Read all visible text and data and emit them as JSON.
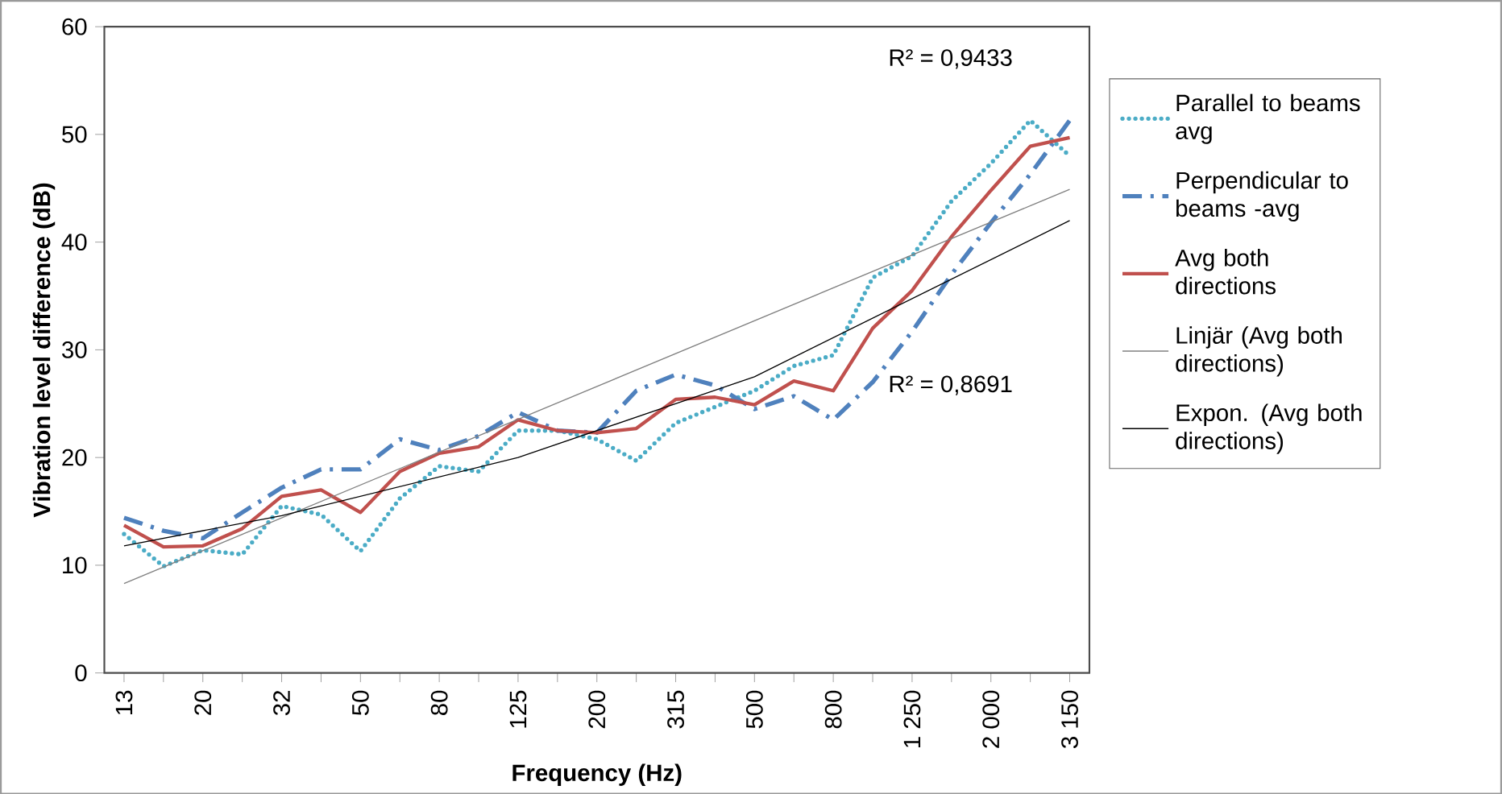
{
  "chart_data": {
    "type": "line",
    "xlabel": "Frequency (Hz)",
    "ylabel": "Vibration level difference (dB)",
    "categories": [
      "13",
      null,
      "20",
      null,
      "32",
      null,
      "50",
      null,
      "80",
      null,
      "125",
      null,
      "200",
      null,
      "315",
      null,
      "500",
      null,
      "800",
      null,
      "1 250",
      null,
      "2 000",
      null,
      "3 150"
    ],
    "ylim": [
      0,
      60
    ],
    "yticks": [
      0,
      10,
      20,
      30,
      40,
      50,
      60
    ],
    "legend": "right",
    "grid": false,
    "series": [
      {
        "name": "Parallel to beams avg",
        "color": "#4bacc6",
        "line_style": "dotted",
        "values": [
          12.9,
          9.9,
          11.4,
          11.0,
          15.5,
          14.7,
          11.3,
          16.2,
          19.2,
          18.7,
          22.5,
          22.5,
          21.7,
          19.7,
          23.2,
          24.7,
          26.2,
          28.5,
          29.5,
          36.7,
          38.7,
          43.8,
          47.3,
          51.3,
          48.0
        ]
      },
      {
        "name": "Perpendicular to beams -avg",
        "color": "#4f81bd",
        "line_style": "dashed",
        "values": [
          14.4,
          13.2,
          12.5,
          14.9,
          17.2,
          18.9,
          18.9,
          21.7,
          20.7,
          22.0,
          24.2,
          22.5,
          22.3,
          26.2,
          27.7,
          26.7,
          24.5,
          25.7,
          23.5,
          27.0,
          31.7,
          37.0,
          41.8,
          46.3,
          51.3
        ]
      },
      {
        "name": "Avg both directions",
        "color": "#c0504d",
        "line_style": "solid",
        "values": [
          13.7,
          11.7,
          11.8,
          13.4,
          16.4,
          17.0,
          14.9,
          18.7,
          20.4,
          21.0,
          23.5,
          22.5,
          22.3,
          22.7,
          25.4,
          25.6,
          24.9,
          27.1,
          26.2,
          32.0,
          35.5,
          40.5,
          44.8,
          48.9,
          49.7
        ]
      },
      {
        "name": "Linjär (Avg both directions)",
        "color": "#808080",
        "line_style": "solid",
        "x": [
          "13",
          "3 150"
        ],
        "values": [
          8.3,
          44.9
        ]
      },
      {
        "name": "Expon. (Avg both directions)",
        "color": "#000000",
        "line_style": "solid",
        "x": [
          "13",
          "32",
          "125",
          "500",
          "3 150"
        ],
        "values": [
          11.8,
          14.6,
          20.0,
          27.5,
          42.0
        ]
      }
    ],
    "annotations": [
      "R² = 0,9433",
      "R² = 0,8691"
    ]
  }
}
